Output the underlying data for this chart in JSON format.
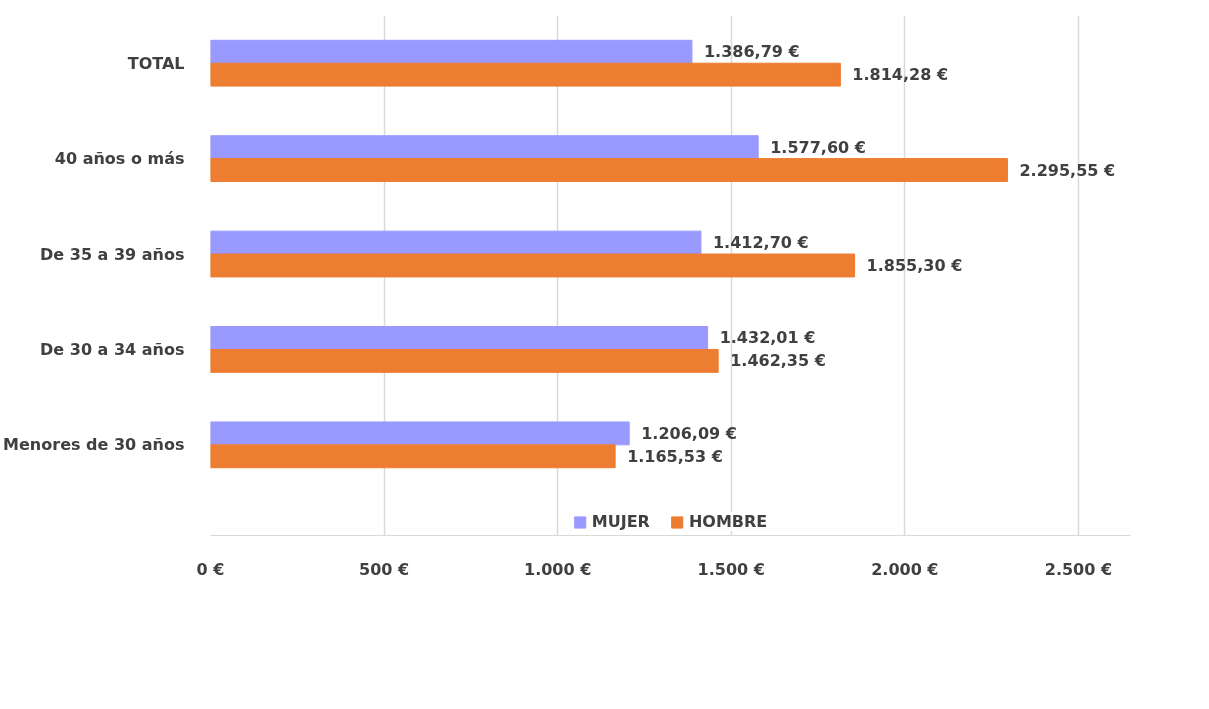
{
  "chart_data": {
    "type": "bar",
    "orientation": "horizontal",
    "categories": [
      "TOTAL",
      "40 años o más",
      "De 35 a 39 años",
      "De 30 a 34 años",
      "Menores de 30 años"
    ],
    "series": [
      {
        "name": "MUJER",
        "color": "#9999ff",
        "values": [
          1386.79,
          1577.6,
          1412.7,
          1432.01,
          1206.09
        ],
        "value_labels": [
          "1.386,79 €",
          "1.577,60 €",
          "1.412,70 €",
          "1.432,01 €",
          "1.206,09 €"
        ]
      },
      {
        "name": "HOMBRE",
        "color": "#ed7d31",
        "values": [
          1814.28,
          2295.55,
          1855.3,
          1462.35,
          1165.53
        ],
        "value_labels": [
          "1.814,28 €",
          "2.295,55 €",
          "1.855,30 €",
          "1.462,35 €",
          "1.165,53 €"
        ]
      }
    ],
    "xlim": [
      0,
      2650
    ],
    "xticks": [
      {
        "value": 0,
        "label": "0 €"
      },
      {
        "value": 500,
        "label": "500 €"
      },
      {
        "value": 1000,
        "label": "1.000 €"
      },
      {
        "value": 1500,
        "label": "1.500 €"
      },
      {
        "value": 2000,
        "label": "2.000 €"
      },
      {
        "value": 2500,
        "label": "2.500 €"
      }
    ],
    "grid": "x",
    "legend": "bottom"
  }
}
